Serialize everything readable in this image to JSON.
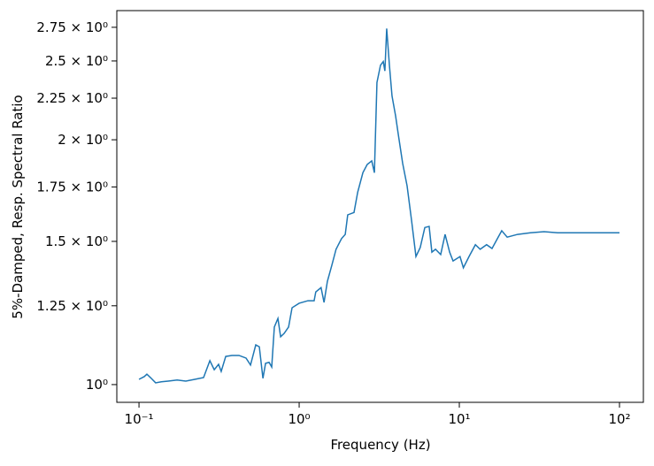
{
  "chart_data": {
    "type": "line",
    "x_label": "Frequency (Hz)",
    "y_label": "5%-Damped, Resp. Spectral Ratio",
    "x_log": true,
    "y_log": true,
    "xlim": [
      0.0727,
      141
    ],
    "ylim": [
      0.951,
      2.883
    ],
    "xticks": [
      {
        "value": 0.1,
        "label": "10⁻¹"
      },
      {
        "value": 1,
        "label": "10⁰"
      },
      {
        "value": 10,
        "label": "10¹"
      },
      {
        "value": 100,
        "label": "10²"
      }
    ],
    "yticks": [
      {
        "value": 1,
        "label": "10⁰"
      },
      {
        "value": 1.25,
        "label": "1.25 × 10⁰"
      },
      {
        "value": 1.5,
        "label": "1.5 × 10⁰"
      },
      {
        "value": 1.75,
        "label": "1.75 × 10⁰"
      },
      {
        "value": 2,
        "label": "2 × 10⁰"
      },
      {
        "value": 2.25,
        "label": "2.25 × 10⁰"
      },
      {
        "value": 2.5,
        "label": "2.5 × 10⁰"
      },
      {
        "value": 2.75,
        "label": "2.75 × 10⁰"
      }
    ],
    "grid": false,
    "x": [
      0.1,
      0.108,
      0.112,
      0.118,
      0.127,
      0.138,
      0.152,
      0.173,
      0.196,
      0.223,
      0.253,
      0.277,
      0.295,
      0.314,
      0.326,
      0.348,
      0.38,
      0.421,
      0.466,
      0.497,
      0.536,
      0.564,
      0.594,
      0.617,
      0.649,
      0.674,
      0.7,
      0.737,
      0.766,
      0.806,
      0.859,
      0.903,
      1.0,
      1.135,
      1.24,
      1.27,
      1.37,
      1.43,
      1.5,
      1.6,
      1.7,
      1.84,
      1.94,
      2.01,
      2.2,
      2.32,
      2.5,
      2.66,
      2.84,
      2.95,
      3.06,
      3.22,
      3.35,
      3.43,
      3.52,
      3.66,
      3.8,
      4.0,
      4.16,
      4.43,
      4.72,
      5.04,
      5.36,
      5.7,
      6.09,
      6.48,
      6.74,
      7.1,
      7.65,
      8.15,
      8.7,
      9.14,
      10.1,
      10.6,
      11.5,
      12.6,
      13.5,
      14.8,
      16.0,
      17.3,
      18.4,
      19.9,
      23.1,
      27.8,
      33.8,
      41.1,
      100
    ],
    "series": [
      {
        "name": "ratio",
        "color": "#1f77b4",
        "values": [
          1.015,
          1.023,
          1.03,
          1.02,
          1.005,
          1.008,
          1.01,
          1.013,
          1.01,
          1.015,
          1.02,
          1.07,
          1.043,
          1.059,
          1.038,
          1.083,
          1.086,
          1.086,
          1.078,
          1.057,
          1.119,
          1.113,
          1.018,
          1.062,
          1.065,
          1.051,
          1.177,
          1.206,
          1.145,
          1.156,
          1.177,
          1.243,
          1.259,
          1.268,
          1.268,
          1.3,
          1.316,
          1.262,
          1.339,
          1.402,
          1.467,
          1.512,
          1.53,
          1.617,
          1.628,
          1.724,
          1.822,
          1.865,
          1.884,
          1.822,
          2.352,
          2.47,
          2.496,
          2.43,
          2.74,
          2.47,
          2.264,
          2.14,
          2.03,
          1.87,
          1.755,
          1.588,
          1.437,
          1.474,
          1.56,
          1.565,
          1.455,
          1.467,
          1.445,
          1.53,
          1.455,
          1.419,
          1.437,
          1.392,
          1.437,
          1.486,
          1.467,
          1.486,
          1.47,
          1.512,
          1.546,
          1.518,
          1.53,
          1.537,
          1.542,
          1.537,
          1.537
        ]
      }
    ]
  }
}
